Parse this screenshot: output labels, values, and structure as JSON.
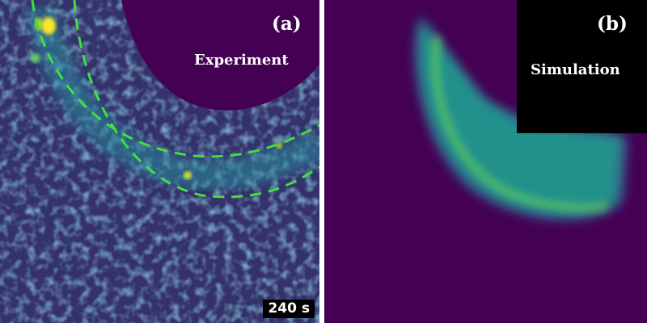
{
  "panel_a": {
    "letter": "(a)",
    "title": "Experiment",
    "timestamp": "240 s"
  },
  "panel_b": {
    "letter": "(b)",
    "title": "Simulation"
  },
  "colors": {
    "background_purple": "#440154",
    "teal": "#21918c",
    "green": "#5ec962",
    "yellow": "#fde725",
    "dashed_guide": "#3fe040"
  }
}
